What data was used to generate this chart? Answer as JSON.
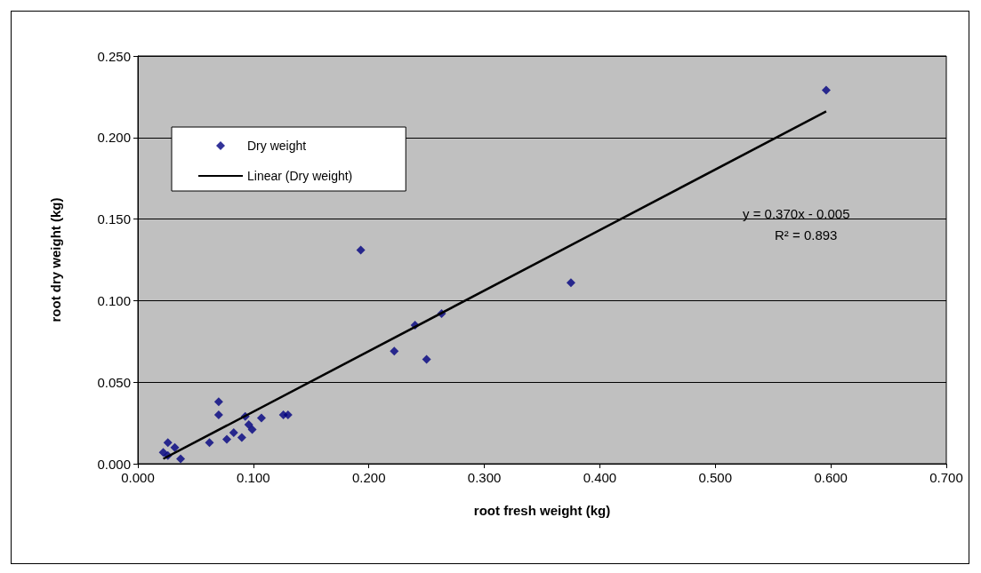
{
  "chart_data": {
    "type": "scatter",
    "xlabel": "root fresh weight (kg)",
    "ylabel": "root dry weight (kg)",
    "annotations": [
      "y = 0.370x - 0.005",
      "R² = 0.893"
    ],
    "series": [
      {
        "name": "Dry weight",
        "color": "#000080",
        "x": [
          0.07,
          0.07,
          0.026,
          0.032,
          0.022,
          0.026,
          0.037,
          0.062,
          0.077,
          0.083,
          0.09,
          0.093,
          0.096,
          0.099,
          0.107,
          0.126,
          0.13,
          0.193,
          0.24,
          0.263,
          0.222,
          0.25,
          0.375,
          0.596
        ],
        "values": [
          0.038,
          0.03,
          0.013,
          0.01,
          0.007,
          0.005,
          0.003,
          0.013,
          0.015,
          0.019,
          0.016,
          0.029,
          0.024,
          0.021,
          0.028,
          0.03,
          0.03,
          0.131,
          0.085,
          0.092,
          0.069,
          0.064,
          0.111,
          0.229
        ]
      },
      {
        "name": "Linear (Dry weight)",
        "type": "line",
        "marker": "none",
        "color": "#000000",
        "x": [
          0.022,
          0.596
        ],
        "values": [
          0.003,
          0.216
        ]
      }
    ],
    "xlim": [
      0,
      0.7
    ],
    "xticks": [
      {
        "value": 0,
        "label": "0.000"
      },
      {
        "value": 0.1,
        "label": "0.100"
      },
      {
        "value": 0.2,
        "label": "0.200"
      },
      {
        "value": 0.3,
        "label": "0.300"
      },
      {
        "value": 0.4,
        "label": "0.400"
      },
      {
        "value": 0.5,
        "label": "0.500"
      },
      {
        "value": 0.6,
        "label": "0.600"
      },
      {
        "value": 0.7,
        "label": "0.700"
      }
    ],
    "ylim": [
      0,
      0.25
    ],
    "yticks": [
      {
        "value": 0,
        "label": "0.000"
      },
      {
        "value": 0.05,
        "label": "0.050"
      },
      {
        "value": 0.1,
        "label": "0.100"
      },
      {
        "value": 0.15,
        "label": "0.150"
      },
      {
        "value": 0.2,
        "label": "0.200"
      },
      {
        "value": 0.25,
        "label": "0.250"
      }
    ],
    "grid": "y",
    "legend": "top left",
    "marker": "diamond"
  }
}
